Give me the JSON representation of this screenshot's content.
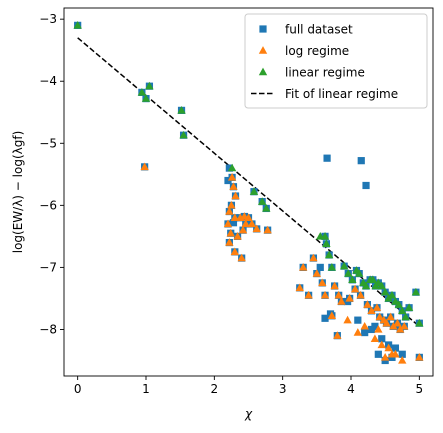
{
  "chart_data": {
    "type": "scatter",
    "xlabel": "χ",
    "ylabel": "log(EW/λ) − log(λgf)",
    "xlim": [
      -0.2,
      5.2
    ],
    "ylim": [
      -8.75,
      -2.82
    ],
    "xticks": [
      0,
      1,
      2,
      3,
      4,
      5
    ],
    "yticks": [
      -8,
      -7,
      -6,
      -5,
      -4,
      -3
    ],
    "xtick_labels": [
      "0",
      "1",
      "2",
      "3",
      "4",
      "5"
    ],
    "ytick_labels": [
      "−8",
      "−7",
      "−6",
      "−5",
      "−4",
      "−3"
    ],
    "grid": false,
    "legend_position": "top-right",
    "series": [
      {
        "name": "full dataset",
        "marker": "square",
        "color": "#1f77b4",
        "x": [
          0.0,
          0.94,
          1.0,
          1.05,
          1.52,
          1.55,
          0.98,
          2.22,
          2.26,
          2.28,
          2.31,
          2.2,
          2.22,
          2.25,
          2.3,
          2.38,
          2.44,
          2.5,
          2.58,
          2.7,
          2.76,
          2.2,
          2.24,
          2.28,
          2.34,
          2.42,
          2.46,
          2.55,
          2.62,
          2.78,
          2.22,
          2.3,
          2.4,
          3.65,
          4.15,
          4.22,
          3.25,
          3.3,
          3.38,
          3.45,
          3.5,
          3.58,
          3.62,
          3.64,
          3.68,
          3.72,
          3.76,
          3.82,
          3.9,
          3.96,
          4.02,
          4.08,
          4.12,
          4.18,
          4.22,
          4.28,
          4.32,
          4.36,
          4.4,
          4.45,
          4.5,
          4.55,
          4.6,
          4.65,
          4.7,
          4.75,
          4.8,
          4.85,
          4.95,
          5.0,
          3.55,
          3.62,
          3.7,
          3.86,
          3.98,
          4.06,
          4.14,
          4.24,
          4.3,
          4.38,
          4.42,
          4.48,
          4.52,
          4.58,
          4.62,
          4.68,
          4.72,
          4.78,
          3.62,
          3.72,
          3.8,
          3.95,
          4.1,
          4.2,
          4.35,
          4.45,
          4.55,
          4.65,
          4.75,
          5.0,
          4.4,
          4.5,
          4.6,
          4.3
        ],
        "y": [
          -3.1,
          -4.18,
          -4.28,
          -4.08,
          -4.47,
          -4.87,
          -5.38,
          -5.4,
          -5.55,
          -5.7,
          -5.85,
          -5.6,
          -6.1,
          -6.0,
          -6.2,
          -6.2,
          -6.18,
          -6.2,
          -5.78,
          -5.94,
          -6.05,
          -6.3,
          -6.45,
          -6.28,
          -6.5,
          -6.4,
          -6.3,
          -6.3,
          -6.38,
          -6.4,
          -6.6,
          -6.75,
          -6.85,
          -5.24,
          -5.28,
          -5.68,
          -7.33,
          -7.0,
          -7.45,
          -6.85,
          -7.1,
          -7.25,
          -6.5,
          -6.62,
          -6.8,
          -7.0,
          -7.3,
          -7.45,
          -6.98,
          -7.1,
          -7.2,
          -7.05,
          -7.1,
          -7.25,
          -7.3,
          -7.2,
          -7.2,
          -7.3,
          -7.25,
          -7.3,
          -7.4,
          -7.5,
          -7.45,
          -7.55,
          -7.6,
          -7.7,
          -7.8,
          -7.65,
          -7.4,
          -7.9,
          -7.0,
          -7.45,
          -7.75,
          -7.55,
          -7.5,
          -7.35,
          -7.45,
          -7.6,
          -7.7,
          -7.65,
          -7.8,
          -7.85,
          -7.9,
          -7.8,
          -7.95,
          -7.9,
          -8.0,
          -7.95,
          -7.82,
          -7.78,
          -8.1,
          -7.55,
          -7.85,
          -8.05,
          -7.95,
          -8.15,
          -8.25,
          -8.3,
          -8.4,
          -8.45,
          -8.4,
          -8.5,
          -8.45,
          -8.0
        ]
      },
      {
        "name": "log regime",
        "marker": "triangle",
        "color": "#ff7f0e",
        "x": [
          0.98,
          2.2,
          2.22,
          2.24,
          2.25,
          2.26,
          2.28,
          2.3,
          2.31,
          2.34,
          2.38,
          2.42,
          2.44,
          2.46,
          2.5,
          2.55,
          2.62,
          2.78,
          2.22,
          2.3,
          2.4,
          3.25,
          3.3,
          3.38,
          3.45,
          3.5,
          3.58,
          3.62,
          3.76,
          3.82,
          3.86,
          3.95,
          3.98,
          4.06,
          4.1,
          4.14,
          4.2,
          4.24,
          4.3,
          4.35,
          4.38,
          4.42,
          4.45,
          4.48,
          4.5,
          4.52,
          4.55,
          4.58,
          4.6,
          4.62,
          4.65,
          4.68,
          4.72,
          4.75,
          4.78,
          5.0,
          4.4,
          3.72,
          3.8
        ],
        "y": [
          -5.38,
          -6.3,
          -6.1,
          -6.45,
          -6.0,
          -5.55,
          -5.7,
          -6.2,
          -5.85,
          -6.5,
          -6.2,
          -6.4,
          -6.18,
          -6.3,
          -6.2,
          -6.3,
          -6.38,
          -6.4,
          -6.6,
          -6.75,
          -6.85,
          -7.33,
          -7.0,
          -7.45,
          -6.85,
          -7.1,
          -7.25,
          -7.45,
          -7.3,
          -7.45,
          -7.55,
          -7.85,
          -7.5,
          -7.35,
          -8.05,
          -7.45,
          -7.95,
          -7.6,
          -7.7,
          -8.15,
          -7.65,
          -7.8,
          -8.25,
          -7.85,
          -8.45,
          -7.9,
          -8.3,
          -7.8,
          -8.4,
          -7.95,
          -8.4,
          -7.9,
          -8.0,
          -8.5,
          -7.95,
          -8.45,
          -8.0,
          -7.78,
          -8.1
        ]
      },
      {
        "name": "linear regime",
        "marker": "triangle",
        "color": "#2ca02c",
        "x": [
          0.0,
          0.94,
          1.0,
          1.05,
          1.52,
          1.55,
          2.26,
          2.58,
          2.7,
          2.76,
          3.55,
          3.62,
          3.64,
          3.68,
          3.72,
          3.9,
          3.96,
          4.02,
          4.08,
          4.12,
          4.18,
          4.22,
          4.28,
          4.32,
          4.36,
          4.4,
          4.45,
          4.5,
          4.55,
          4.6,
          4.65,
          4.7,
          4.75,
          4.8,
          4.85,
          4.95,
          5.0
        ],
        "y": [
          -3.1,
          -4.18,
          -4.28,
          -4.08,
          -4.47,
          -4.87,
          -5.4,
          -5.78,
          -5.94,
          -6.05,
          -6.5,
          -6.5,
          -6.62,
          -6.8,
          -7.0,
          -6.98,
          -7.1,
          -7.2,
          -7.05,
          -7.1,
          -7.25,
          -7.3,
          -7.2,
          -7.2,
          -7.3,
          -7.25,
          -7.3,
          -7.4,
          -7.5,
          -7.45,
          -7.55,
          -7.6,
          -7.7,
          -7.8,
          -7.65,
          -7.4,
          -7.9
        ]
      },
      {
        "name": "Fit of linear regime",
        "marker": "line",
        "style": "dashed",
        "color": "#000000",
        "x": [
          0.0,
          5.0
        ],
        "y": [
          -3.3,
          -7.95
        ]
      }
    ]
  }
}
